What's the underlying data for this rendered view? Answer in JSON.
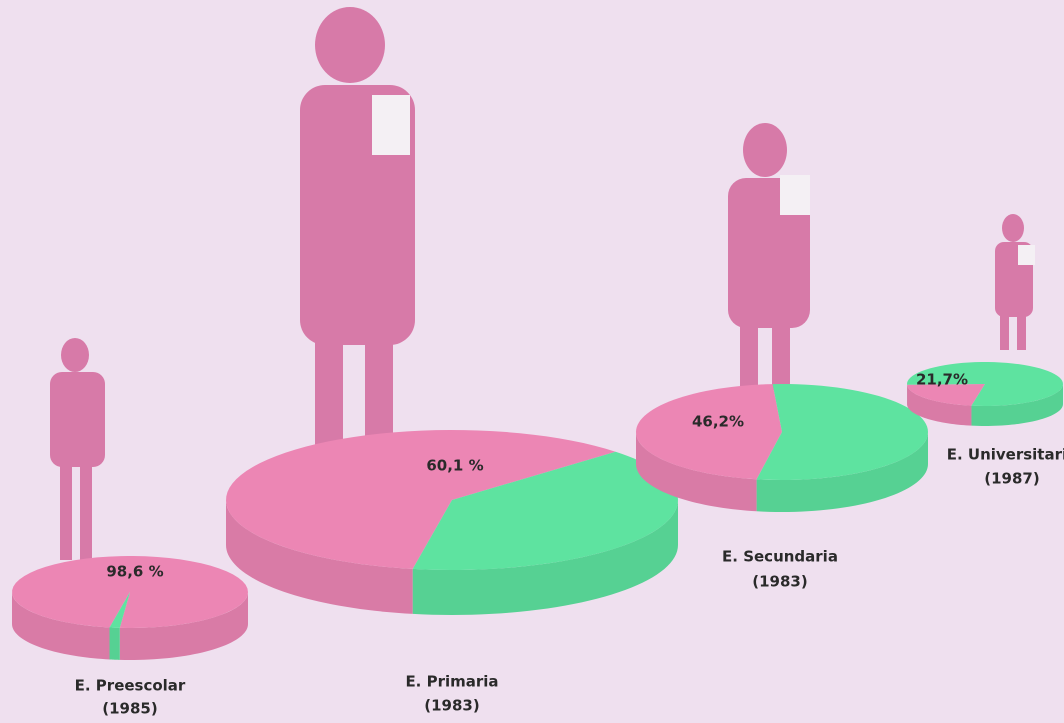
{
  "chart_data": [
    {
      "type": "pie",
      "title": "E. Preescolar",
      "subtitle": "(1985)",
      "values": [
        98.6,
        1.4
      ],
      "value_labels": [
        "98,6 %",
        null
      ],
      "colors": [
        "#ec86b4",
        "#5ee3a0"
      ]
    },
    {
      "type": "pie",
      "title": "E. Primaria",
      "subtitle": "(1983)",
      "values": [
        60.1,
        39.9
      ],
      "value_labels": [
        "60,1 %",
        null
      ],
      "colors": [
        "#ec86b4",
        "#5ee3a0"
      ]
    },
    {
      "type": "pie",
      "title": "E. Secundaria",
      "subtitle": "(1983)",
      "values": [
        46.2,
        53.8
      ],
      "value_labels": [
        "46,2%",
        null
      ],
      "colors": [
        "#ec86b4",
        "#5ee3a0"
      ]
    },
    {
      "type": "pie",
      "title": "E. Universitaria",
      "subtitle": "(1987)",
      "values": [
        21.7,
        78.3
      ],
      "value_labels": [
        "21,7%",
        null
      ],
      "colors": [
        "#ec86b4",
        "#5ee3a0"
      ]
    }
  ]
}
